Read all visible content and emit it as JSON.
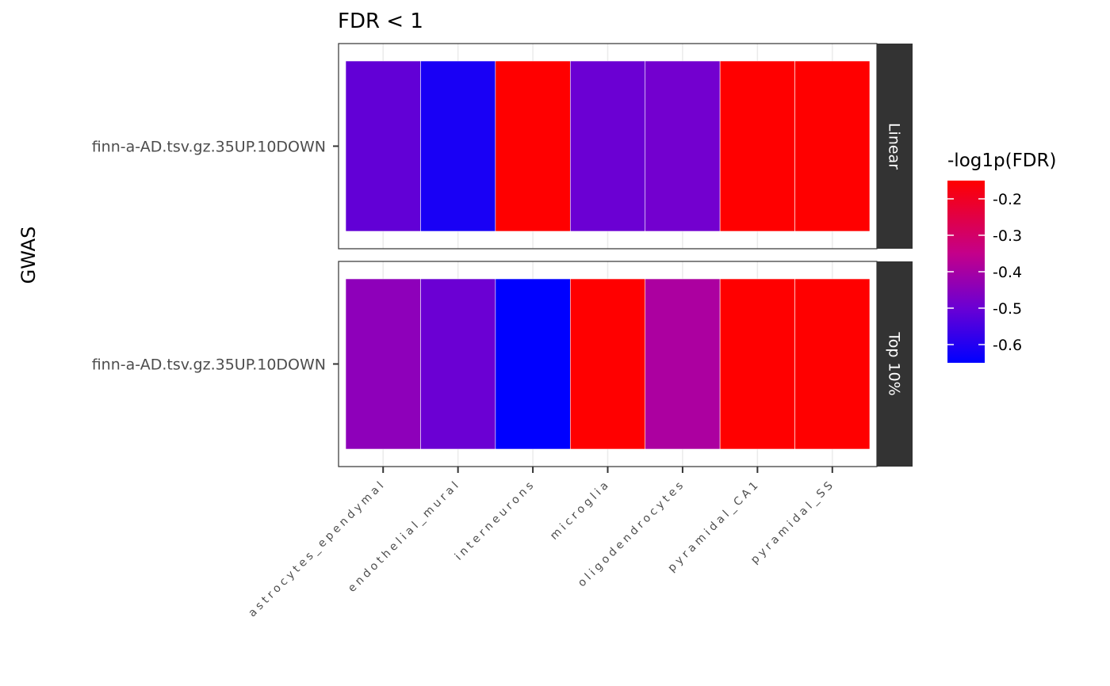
{
  "chart_data": {
    "type": "heatmap",
    "title": "FDR < 1",
    "ylabel": "GWAS",
    "xlabel": "",
    "categories": [
      "astrocytes_ependymal",
      "endothelial_mural",
      "interneurons",
      "microglia",
      "oligodendrocytes",
      "pyramidal_CA1",
      "pyramidal_SS"
    ],
    "facets": [
      {
        "label": "Linear",
        "rows": [
          "finn-a-AD.tsv.gz.35UP.10DOWN"
        ],
        "values": [
          [
            -0.53,
            -0.62,
            -0.15,
            -0.52,
            -0.51,
            -0.15,
            -0.15
          ]
        ]
      },
      {
        "label": "Top 10%",
        "rows": [
          "finn-a-AD.tsv.gz.35UP.10DOWN"
        ],
        "values": [
          [
            -0.46,
            -0.52,
            -0.65,
            -0.15,
            -0.4,
            -0.15,
            -0.15
          ]
        ]
      }
    ],
    "legend": {
      "title": "-log1p(FDR)",
      "position": "right",
      "ticks": [
        -0.2,
        -0.3,
        -0.4,
        -0.5,
        -0.6
      ],
      "range": [
        -0.65,
        -0.15
      ],
      "colors": {
        "low": "#0000ff",
        "mid": "#7b00cc",
        "high": "#ff0000"
      }
    },
    "grid": true
  }
}
